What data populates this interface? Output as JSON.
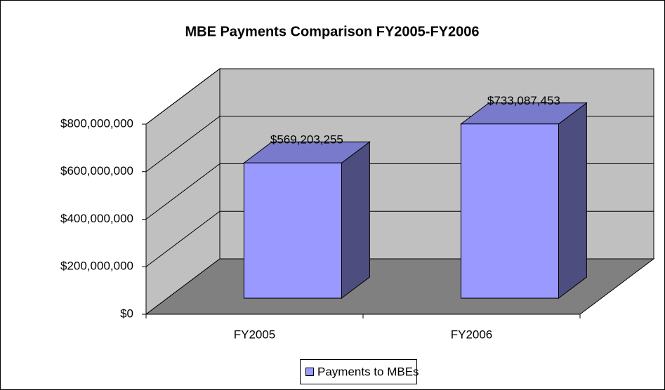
{
  "chart_data": {
    "type": "bar3d",
    "title": "MBE Payments Comparison FY2005-FY2006",
    "categories": [
      "FY2005",
      "FY2006"
    ],
    "series": [
      {
        "name": "Payments to MBEs",
        "color": "#9999ff",
        "values": [
          569203255,
          733087453
        ],
        "value_labels": [
          "$569,203,255",
          "$733,087,453"
        ]
      }
    ],
    "ylim": [
      0,
      800000000
    ],
    "yticks": [
      {
        "value": 0,
        "label": "$0"
      },
      {
        "value": 200000000,
        "label": "$200,000,000"
      },
      {
        "value": 400000000,
        "label": "$400,000,000"
      },
      {
        "value": 600000000,
        "label": "$600,000,000"
      },
      {
        "value": 800000000,
        "label": "$800,000,000"
      }
    ],
    "grid": true,
    "legend": "bottom"
  }
}
